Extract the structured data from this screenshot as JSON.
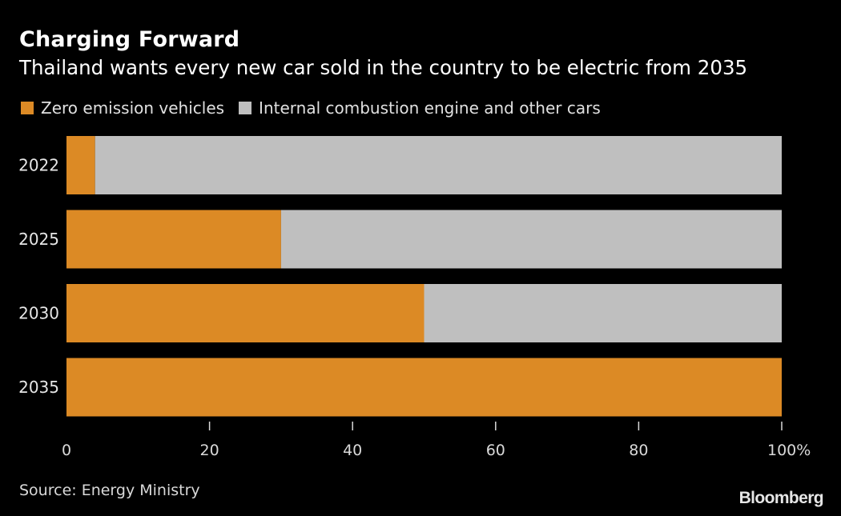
{
  "chart_data": {
    "type": "bar",
    "orientation": "horizontal",
    "stacked": true,
    "title": "Charging Forward",
    "subtitle": "Thailand wants every new car sold in the country to be electric from 2035",
    "categories": [
      "2022",
      "2025",
      "2030",
      "2035"
    ],
    "series": [
      {
        "name": "Zero emission vehicles",
        "color": "#DC8A25",
        "values": [
          4,
          30,
          50,
          100
        ]
      },
      {
        "name": "Internal combustion engine and other cars",
        "color": "#BFBFBF",
        "values": [
          96,
          70,
          50,
          0
        ]
      }
    ],
    "xlabel": "",
    "ylabel": "",
    "xlim": [
      0,
      100
    ],
    "xticks": [
      0,
      20,
      40,
      60,
      80,
      100
    ],
    "xtick_labels": [
      "0",
      "20",
      "40",
      "60",
      "80",
      "100%"
    ],
    "grid": false,
    "legend": "top-left",
    "source": "Source: Energy Ministry",
    "brand": "Bloomberg"
  },
  "colors": {
    "background": "#000000",
    "text": "#FFFFFF",
    "axis": "#D9D9D9"
  }
}
